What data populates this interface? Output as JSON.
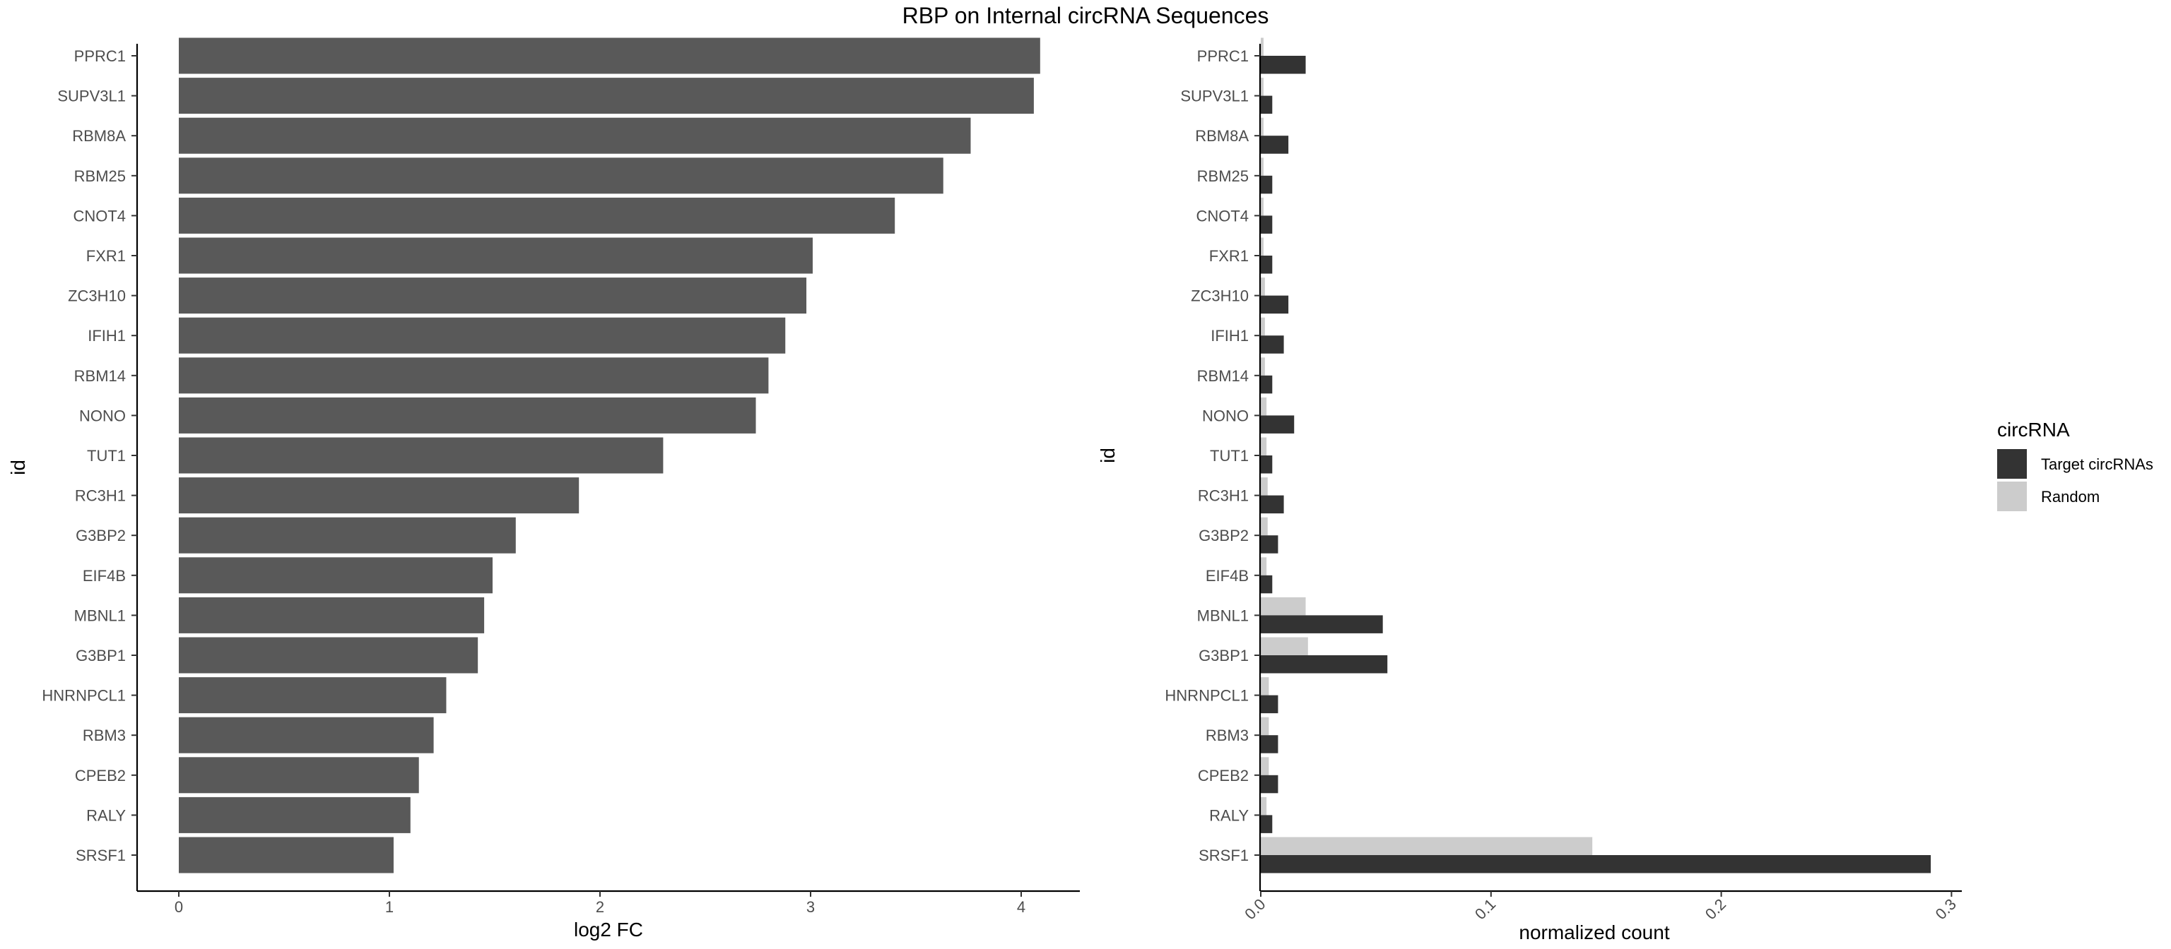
{
  "title": "RBP on Internal circRNA Sequences",
  "colors": {
    "bar_left": "#595959",
    "target": "#333333",
    "random": "#cccccc",
    "axis": "#000000",
    "tick_text": "#4d4d4d"
  },
  "chart_data": [
    {
      "type": "bar",
      "orientation": "horizontal",
      "xlabel": "log2 FC",
      "ylabel": "id",
      "xlim": [
        0,
        4.3
      ],
      "xticks": [
        "0",
        "1",
        "2",
        "3",
        "4"
      ],
      "xtick_values": [
        0,
        1,
        2,
        3,
        4
      ],
      "grid": false,
      "categories": [
        "PPRC1",
        "SUPV3L1",
        "RBM8A",
        "RBM25",
        "CNOT4",
        "FXR1",
        "ZC3H10",
        "IFIH1",
        "RBM14",
        "NONO",
        "TUT1",
        "RC3H1",
        "G3BP2",
        "EIF4B",
        "MBNL1",
        "G3BP1",
        "HNRNPCL1",
        "RBM3",
        "CPEB2",
        "RALY",
        "SRSF1"
      ],
      "values": [
        4.09,
        4.06,
        3.76,
        3.63,
        3.4,
        3.01,
        2.98,
        2.88,
        2.8,
        2.74,
        2.3,
        1.9,
        1.6,
        1.49,
        1.45,
        1.42,
        1.27,
        1.21,
        1.14,
        1.1,
        1.02
      ]
    },
    {
      "type": "bar",
      "orientation": "horizontal",
      "grouped": true,
      "xlabel": "normalized count",
      "ylabel": "id",
      "xlim": [
        0,
        0.3
      ],
      "xticks": [
        "0.0",
        "0.1",
        "0.2",
        "0.3"
      ],
      "xtick_values": [
        0.0,
        0.1,
        0.2,
        0.3
      ],
      "grid": false,
      "legend_title": "circRNA",
      "legend_position": "right",
      "categories": [
        "PPRC1",
        "SUPV3L1",
        "RBM8A",
        "RBM25",
        "CNOT4",
        "FXR1",
        "ZC3H10",
        "IFIH1",
        "RBM14",
        "NONO",
        "TUT1",
        "RC3H1",
        "G3BP2",
        "EIF4B",
        "MBNL1",
        "G3BP1",
        "HNRNPCL1",
        "RBM3",
        "CPEB2",
        "RALY",
        "SRSF1"
      ],
      "series": [
        {
          "name": "Target circRNAs",
          "color": "#333333",
          "values": [
            0.0195,
            0.005,
            0.012,
            0.005,
            0.005,
            0.005,
            0.012,
            0.01,
            0.005,
            0.0145,
            0.005,
            0.01,
            0.0075,
            0.005,
            0.053,
            0.055,
            0.0075,
            0.0075,
            0.0075,
            0.005,
            0.291
          ]
        },
        {
          "name": "Random",
          "color": "#cccccc",
          "values": [
            0.0012,
            0.0012,
            0.0012,
            0.0012,
            0.0012,
            0.0012,
            0.0018,
            0.0018,
            0.0018,
            0.0025,
            0.0025,
            0.003,
            0.003,
            0.0025,
            0.0195,
            0.0205,
            0.0035,
            0.0035,
            0.0035,
            0.0025,
            0.144
          ]
        }
      ]
    }
  ]
}
